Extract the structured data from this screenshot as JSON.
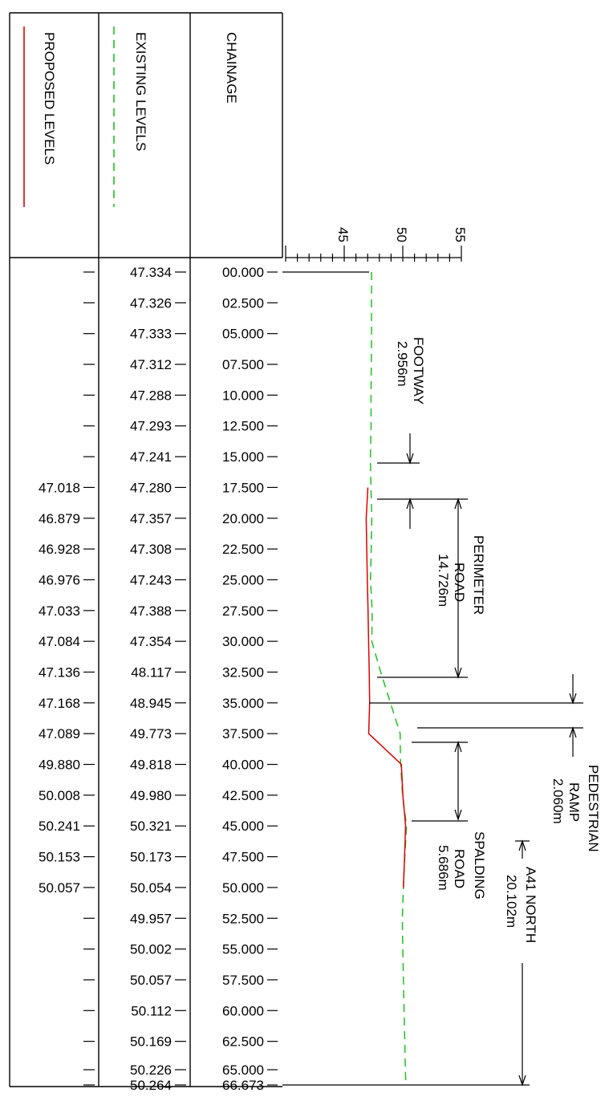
{
  "table": {
    "headers": {
      "proposed": "PROPOSED LEVELS",
      "existing": "EXISTING LEVELS",
      "chainage": "CHAINAGE"
    },
    "colors": {
      "proposed": "#e00000",
      "existing": "#20c020",
      "ink": "#000000"
    }
  },
  "scale": {
    "ticks": [
      "45",
      "50",
      "55"
    ],
    "min": 40,
    "max": 57
  },
  "chart_data": {
    "type": "line",
    "orientation": "chainage runs downward, level increases to the right",
    "chainage": [
      "00.000",
      "02.500",
      "05.000",
      "07.500",
      "10.000",
      "12.500",
      "15.000",
      "17.500",
      "20.000",
      "22.500",
      "25.000",
      "27.500",
      "30.000",
      "32.500",
      "35.000",
      "37.500",
      "40.000",
      "42.500",
      "45.000",
      "47.500",
      "50.000",
      "52.500",
      "55.000",
      "57.500",
      "60.000",
      "62.500",
      "65.000",
      "66.673"
    ],
    "existing": [
      "47.334",
      "47.326",
      "47.333",
      "47.312",
      "47.288",
      "47.293",
      "47.241",
      "47.280",
      "47.357",
      "47.308",
      "47.243",
      "47.388",
      "47.354",
      "48.117",
      "48.945",
      "49.773",
      "49.818",
      "49.980",
      "50.321",
      "50.173",
      "50.054",
      "49.957",
      "50.002",
      "50.057",
      "50.112",
      "50.169",
      "50.226",
      "50.264"
    ],
    "proposed": [
      "",
      "",
      "",
      "",
      "",
      "",
      "",
      "47.018",
      "46.879",
      "46.928",
      "46.976",
      "47.033",
      "47.084",
      "47.136",
      "47.168",
      "47.089",
      "49.880",
      "50.008",
      "50.241",
      "50.153",
      "50.057",
      "",
      "",
      "",
      " ",
      "",
      "",
      ""
    ],
    "series": [
      {
        "name": "EXISTING LEVELS",
        "color": "#20c020",
        "dashed": true
      },
      {
        "name": "PROPOSED LEVELS",
        "color": "#e00000",
        "dashed": false
      }
    ]
  },
  "annotations": {
    "footway": {
      "label": "FOOTWAY",
      "width": "2.956m"
    },
    "perimeter": {
      "label1": "PERIMETER",
      "label2": "ROAD",
      "width": "14.726m"
    },
    "ramp": {
      "label1": "PEDESTRIAN",
      "label2": "RAMP",
      "width": "2.060m"
    },
    "spalding": {
      "label1": "SPALDING",
      "label2": "ROAD",
      "width": "5.686m"
    },
    "a41": {
      "label": "A41 NORTH",
      "width": "20.102m"
    }
  }
}
